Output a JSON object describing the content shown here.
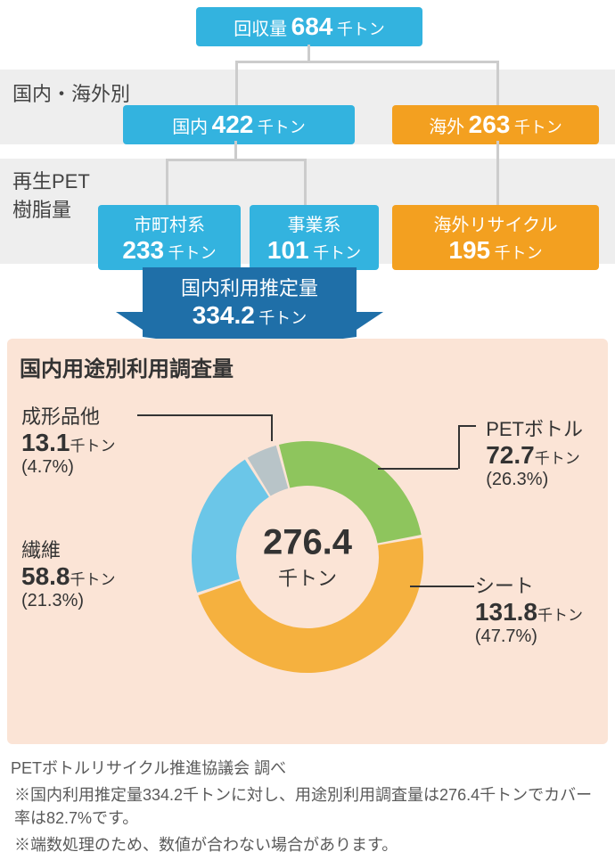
{
  "colors": {
    "blue": "#33b3df",
    "orange": "#f3a020",
    "dark_blue": "#1f6fa8",
    "gray_band": "#eeeeee",
    "connector": "#cccccc",
    "panel_bg": "#fbe4d6",
    "text": "#333333"
  },
  "top": {
    "label": "回収量",
    "value": "684",
    "unit": "千トン"
  },
  "section_domestic_overseas": "国内・海外別",
  "domestic": {
    "label": "国内",
    "value": "422",
    "unit": "千トン"
  },
  "overseas": {
    "label": "海外",
    "value": "263",
    "unit": "千トン"
  },
  "section_recycled": "再生PET\n樹脂量",
  "municipal": {
    "label": "市町村系",
    "value": "233",
    "unit": "千トン"
  },
  "business": {
    "label": "事業系",
    "value": "101",
    "unit": "千トン"
  },
  "overseas_recycle": {
    "label": "海外リサイクル",
    "value": "195",
    "unit": "千トン"
  },
  "estimate": {
    "label": "国内利用推定量",
    "value": "334.2",
    "unit": "千トン"
  },
  "donut": {
    "title": "国内用途別利用調査量",
    "center_value": "276.4",
    "center_unit": "千トン",
    "radius_outer": 130,
    "radius_inner": 80,
    "slices": [
      {
        "name": "PETボトル",
        "value": "72.7",
        "unit": "千トン",
        "pct": 26.3,
        "color": "#8ec55d"
      },
      {
        "name": "シート",
        "value": "131.8",
        "unit": "千トン",
        "pct": 47.7,
        "color": "#f5b13f"
      },
      {
        "name": "繊維",
        "value": "58.8",
        "unit": "千トン",
        "pct": 21.3,
        "color": "#6bc6e8"
      },
      {
        "name": "成形品他",
        "value": "13.1",
        "unit": "千トン",
        "pct": 4.7,
        "color": "#b8c4c8"
      }
    ],
    "start_angle": -15,
    "gap": 1.5
  },
  "source": "PETボトルリサイクル推進協議会 調べ",
  "note1": "※国内利用推定量334.2千トンに対し、用途別利用調査量は276.4千トンでカバー率は82.7%です。",
  "note2": "※端数処理のため、数値が合わない場合があります。"
}
